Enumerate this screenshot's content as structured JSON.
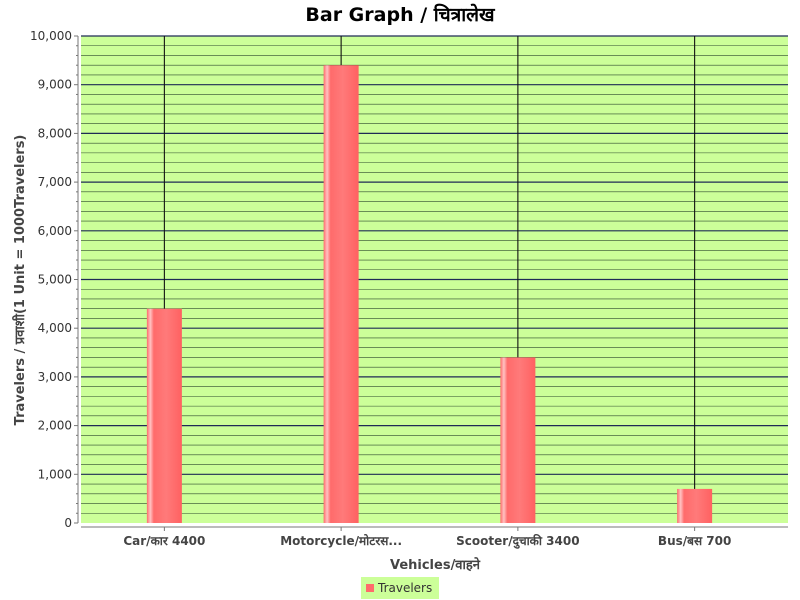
{
  "chart_data": {
    "type": "bar",
    "title": "Bar Graph / चित्रालेख",
    "xlabel": "Vehicles/वाहने",
    "ylabel": "Travelers / प्रवाशी(1 Unit = 1000Travelers)",
    "categories": [
      "Car/कार 4400",
      "Motorcycle/मोटरस...",
      "Scooter/दुचाकी 3400",
      "Bus/बस 700"
    ],
    "series": [
      {
        "name": "Travelers",
        "values": [
          4400,
          9400,
          3400,
          700
        ]
      }
    ],
    "ylim": [
      0,
      10000
    ],
    "yticks": [
      "0",
      "1,000",
      "2,000",
      "3,000",
      "4,000",
      "5,000",
      "6,000",
      "7,000",
      "8,000",
      "9,000",
      "10,000"
    ],
    "grid": true,
    "legend_position": "bottom",
    "colors": {
      "plot_background": "#ccff99",
      "bar": "#ff6b6b",
      "bar_highlight": "#ffc2c2",
      "grid_minor": "#2e4a2e",
      "grid_major": "#1f2b55",
      "legend_background": "#ccff99"
    }
  }
}
